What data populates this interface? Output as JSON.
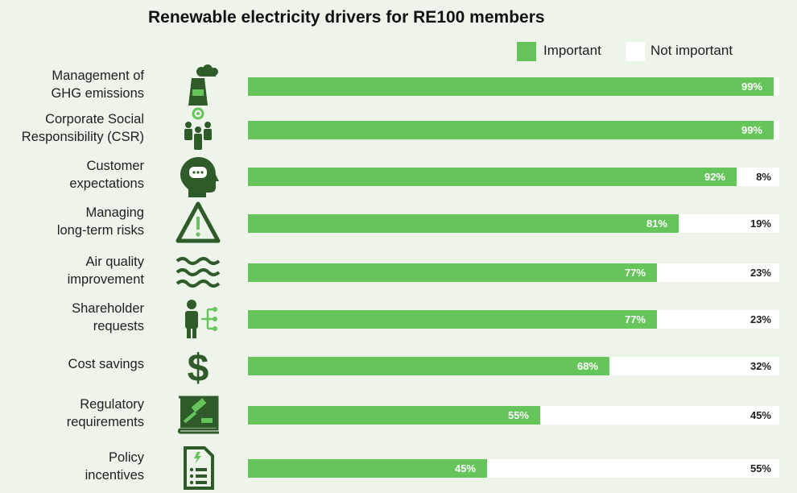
{
  "chart_data": {
    "type": "bar",
    "orientation": "horizontal",
    "stacked": true,
    "title": "Renewable electricity drivers for RE100 members",
    "xlim": [
      0,
      100
    ],
    "legend_position": "top-right",
    "grid": false,
    "series": [
      {
        "name": "Important",
        "color": "#66c55a"
      },
      {
        "name": "Not important",
        "color": "#ffffff"
      }
    ],
    "categories": [
      {
        "label_lines": [
          "Management of",
          "GHG emissions"
        ],
        "icon": "factory-emissions-icon",
        "important": 99,
        "important_label": "99%",
        "not_important": 1,
        "not_important_label": ""
      },
      {
        "label_lines": [
          "Corporate Social",
          "Responsibility (CSR)"
        ],
        "icon": "people-gear-icon",
        "important": 99,
        "important_label": "99%",
        "not_important": 1,
        "not_important_label": ""
      },
      {
        "label_lines": [
          "Customer",
          "expectations"
        ],
        "icon": "head-speech-icon",
        "important": 92,
        "important_label": "92%",
        "not_important": 8,
        "not_important_label": "8%"
      },
      {
        "label_lines": [
          "Managing",
          "long-term risks"
        ],
        "icon": "warning-triangle-icon",
        "important": 81,
        "important_label": "81%",
        "not_important": 19,
        "not_important_label": "19%"
      },
      {
        "label_lines": [
          "Air quality",
          "improvement"
        ],
        "icon": "air-waves-icon",
        "important": 77,
        "important_label": "77%",
        "not_important": 23,
        "not_important_label": "23%"
      },
      {
        "label_lines": [
          "Shareholder",
          "requests"
        ],
        "icon": "person-network-icon",
        "important": 77,
        "important_label": "77%",
        "not_important": 23,
        "not_important_label": "23%"
      },
      {
        "label_lines": [
          "Cost savings"
        ],
        "icon": "dollar-sign-icon",
        "important": 68,
        "important_label": "68%",
        "not_important": 32,
        "not_important_label": "32%"
      },
      {
        "label_lines": [
          "Regulatory",
          "requirements"
        ],
        "icon": "gavel-book-icon",
        "important": 55,
        "important_label": "55%",
        "not_important": 45,
        "not_important_label": "45%"
      },
      {
        "label_lines": [
          "Policy",
          "incentives"
        ],
        "icon": "policy-document-icon",
        "important": 45,
        "important_label": "45%",
        "not_important": 55,
        "not_important_label": "55%"
      }
    ]
  }
}
